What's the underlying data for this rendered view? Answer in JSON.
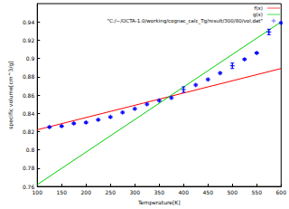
{
  "chart_data": {
    "type": "scatter",
    "x_label": "Temperature[K]",
    "y_label": "specific volume[cm^3/g]",
    "xlim": [
      100,
      600
    ],
    "xticks": [
      100,
      150,
      200,
      250,
      300,
      350,
      400,
      450,
      500,
      550,
      600
    ],
    "ylim": [
      0.76,
      0.96
    ],
    "yticks": [
      0.76,
      0.78,
      0.8,
      0.82,
      0.84,
      0.86,
      0.88,
      0.9,
      0.92,
      0.94
    ],
    "grid": false,
    "legend": "upper right",
    "series": [
      {
        "name": "f(x)",
        "type": "line",
        "color": "#ff0000",
        "line_style": "solid",
        "x": [
          100,
          600
        ],
        "values": [
          0.822,
          0.889
        ]
      },
      {
        "name": "g(x)",
        "type": "line",
        "color": "#00cc00",
        "line_style": "solid",
        "x": [
          100,
          600
        ],
        "values": [
          0.762,
          0.94
        ]
      },
      {
        "name": "\"C:/~/OCTA-1.0/working/cognac_calc_Tg/result/300/80/vol.dat\"",
        "type": "scatter",
        "color": "#0000ff",
        "marker": "plus",
        "x": [
          125,
          150,
          175,
          200,
          225,
          250,
          275,
          300,
          325,
          350,
          375,
          400,
          425,
          450,
          475,
          500,
          525,
          550,
          575,
          600
        ],
        "values": [
          0.825,
          0.826,
          0.829,
          0.83,
          0.833,
          0.836,
          0.841,
          0.845,
          0.85,
          0.854,
          0.857,
          0.866,
          0.871,
          0.877,
          0.884,
          0.892,
          0.899,
          0.906,
          0.929,
          0.939
        ],
        "errors": [
          0.001,
          0.001,
          0.001,
          0.001,
          0.001,
          0.001,
          0.001,
          0.001,
          0.001,
          0.001,
          0.001,
          0.003,
          0.001,
          0.001,
          0.001,
          0.003,
          0.001,
          0.001,
          0.003,
          0.001
        ]
      }
    ]
  }
}
